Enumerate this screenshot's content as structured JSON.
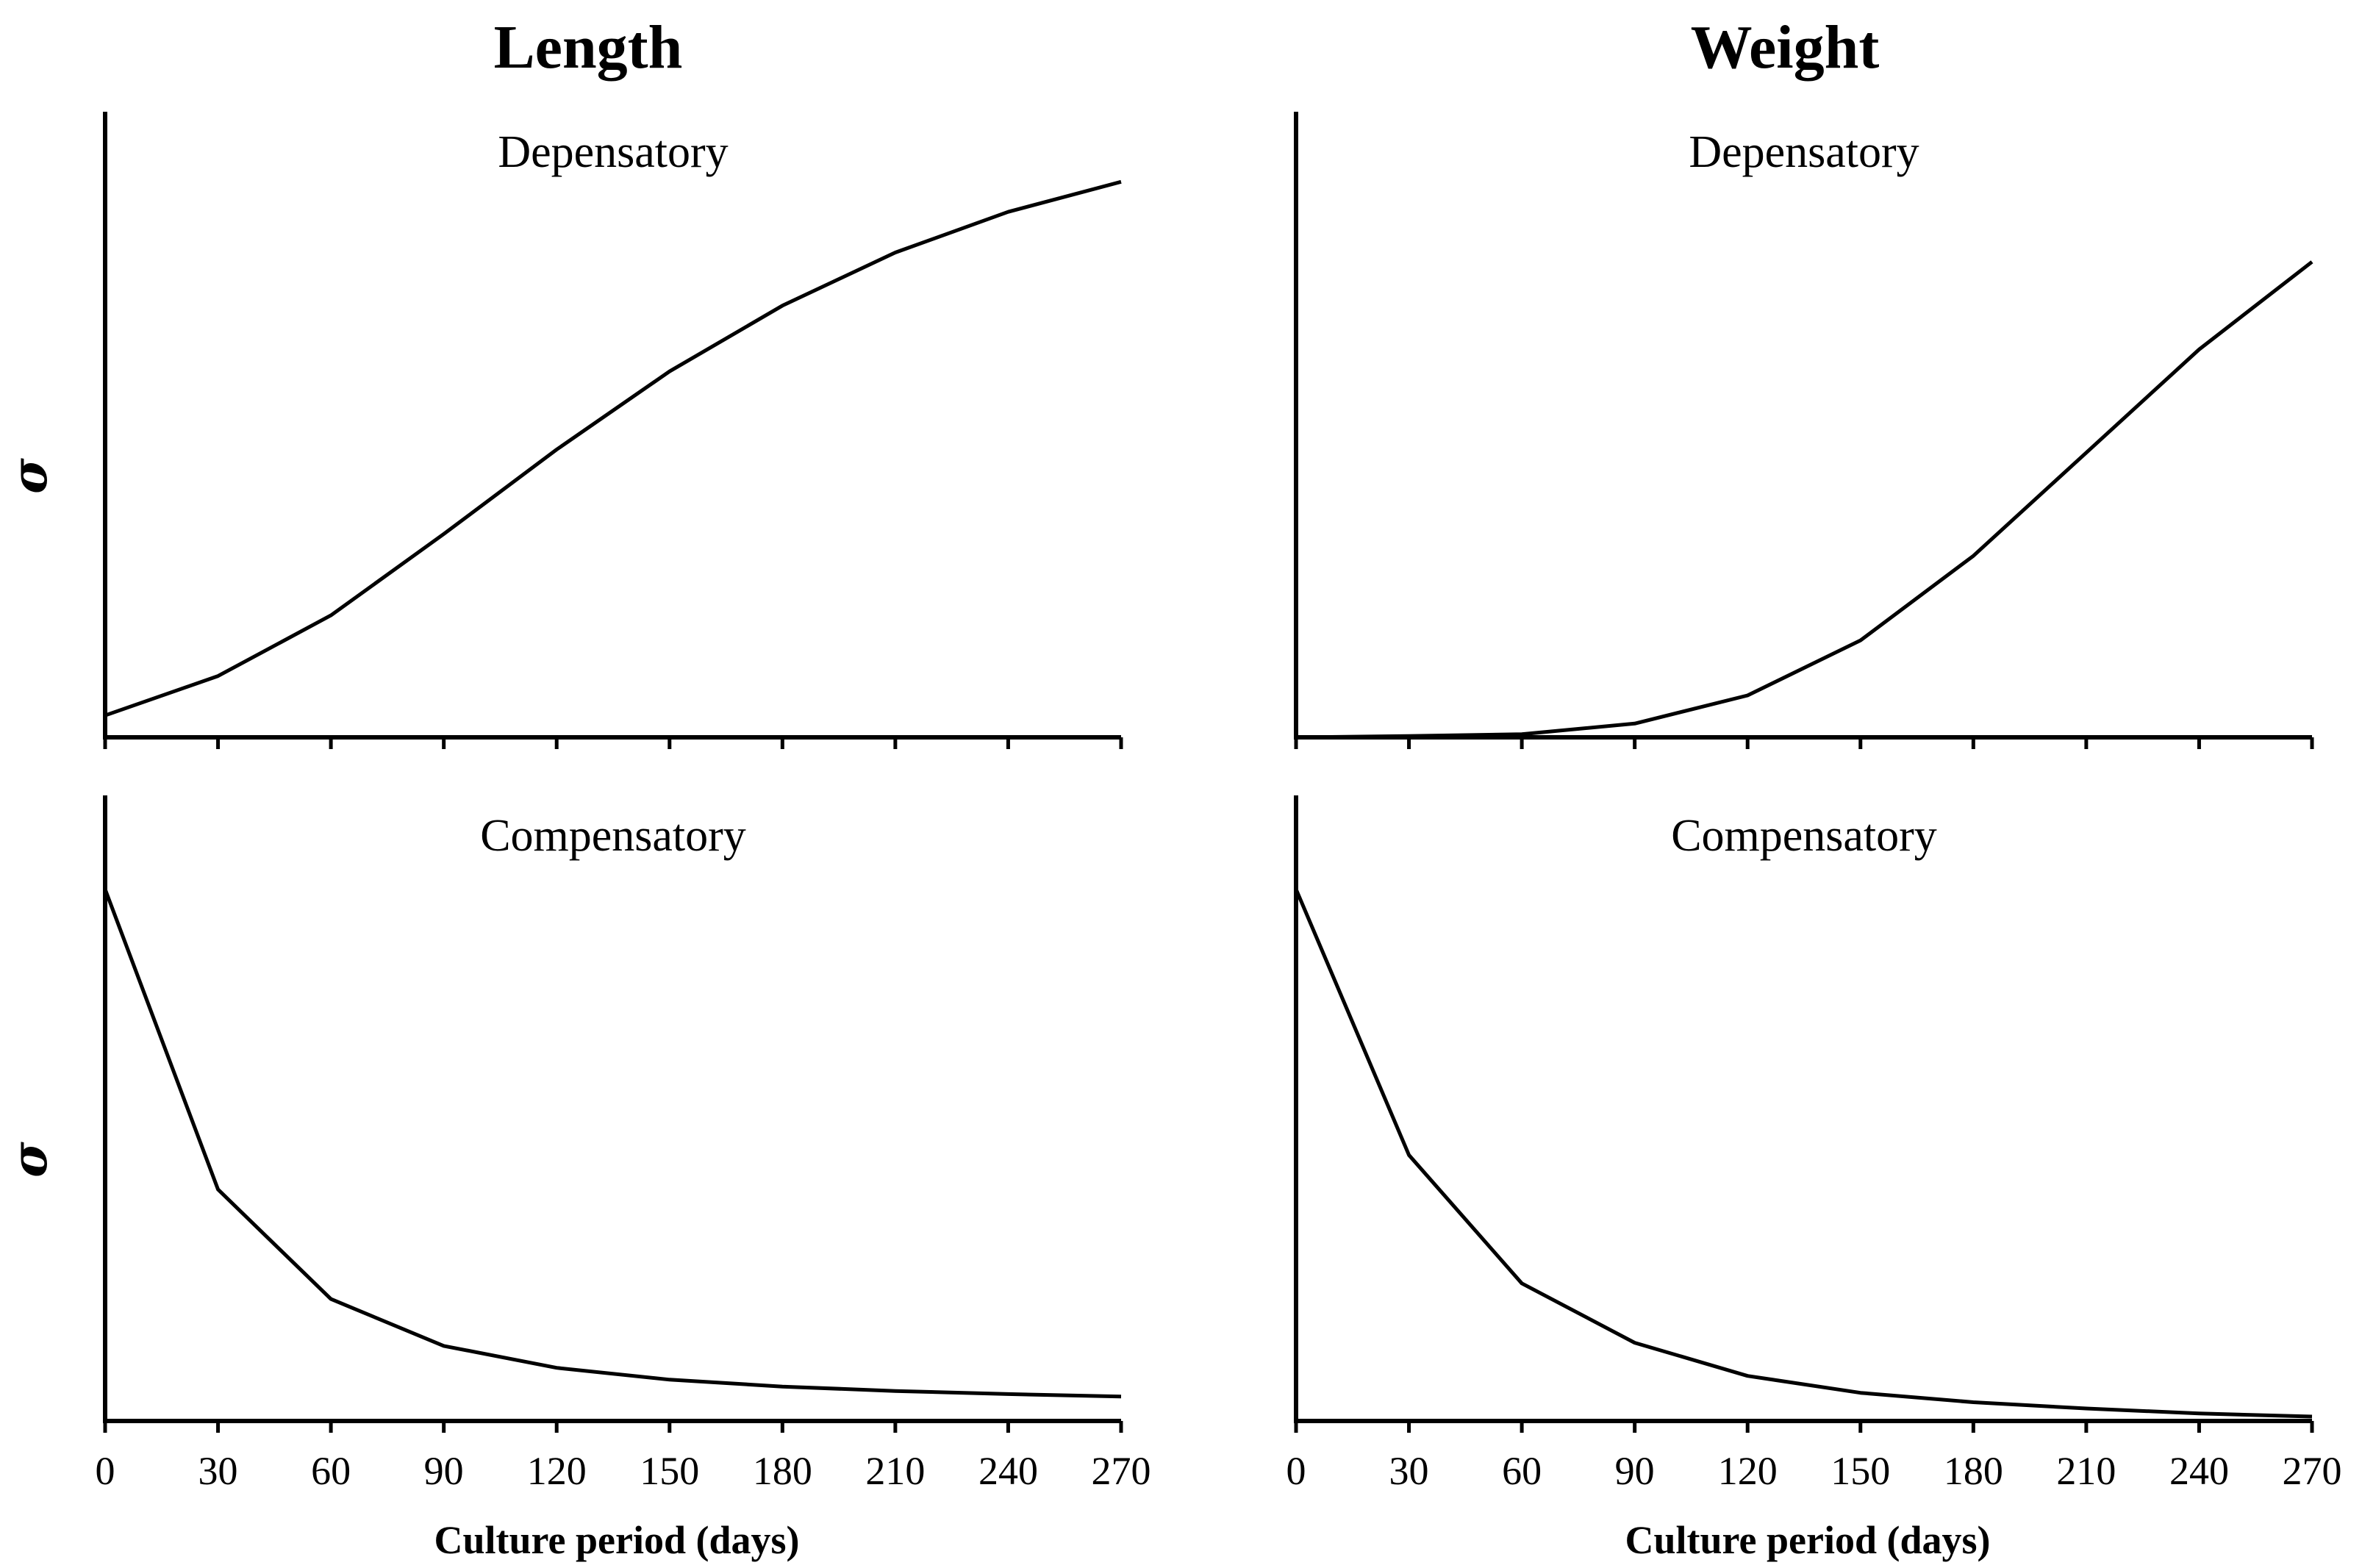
{
  "figure": {
    "column_titles": [
      "Length",
      "Weight"
    ],
    "row_labels": [
      "Depensatory",
      "Compensatory"
    ],
    "y_axis_symbol": "σ",
    "x_axis_title": "Culture period (days)"
  },
  "chart_data": [
    {
      "type": "line",
      "column": "Length",
      "panel_label": "Depensatory",
      "xlabel": "",
      "ylabel": "σ",
      "x": [
        0,
        30,
        60,
        90,
        120,
        150,
        180,
        210,
        240,
        270
      ],
      "y": [
        0.035,
        0.098,
        0.195,
        0.325,
        0.46,
        0.585,
        0.69,
        0.775,
        0.84,
        0.888
      ],
      "xlim": [
        0,
        270
      ],
      "ylim": [
        0,
        1
      ],
      "x_tick_labels": [],
      "show_y_symbol": true
    },
    {
      "type": "line",
      "column": "Weight",
      "panel_label": "Depensatory",
      "xlabel": "",
      "ylabel": "",
      "x": [
        0,
        30,
        60,
        90,
        120,
        150,
        180,
        210,
        240,
        270
      ],
      "y": [
        0.0,
        0.002,
        0.005,
        0.022,
        0.067,
        0.155,
        0.29,
        0.455,
        0.62,
        0.76
      ],
      "xlim": [
        0,
        270
      ],
      "ylim": [
        0,
        1
      ],
      "x_tick_labels": [],
      "show_y_symbol": false
    },
    {
      "type": "line",
      "column": "Length",
      "panel_label": "Compensatory",
      "xlabel": "Culture period (days)",
      "ylabel": "σ",
      "x": [
        0,
        30,
        60,
        90,
        120,
        150,
        180,
        210,
        240,
        270
      ],
      "y": [
        0.85,
        0.37,
        0.195,
        0.12,
        0.085,
        0.066,
        0.055,
        0.048,
        0.043,
        0.039
      ],
      "xlim": [
        0,
        270
      ],
      "ylim": [
        0,
        1
      ],
      "x_tick_labels": [
        "0",
        "30",
        "60",
        "90",
        "120",
        "150",
        "180",
        "210",
        "240",
        "270"
      ],
      "show_y_symbol": true
    },
    {
      "type": "line",
      "column": "Weight",
      "panel_label": "Compensatory",
      "xlabel": "Culture period (days)",
      "ylabel": "",
      "x": [
        0,
        30,
        60,
        90,
        120,
        150,
        180,
        210,
        240,
        270
      ],
      "y": [
        0.85,
        0.425,
        0.22,
        0.125,
        0.072,
        0.045,
        0.03,
        0.02,
        0.012,
        0.007
      ],
      "xlim": [
        0,
        270
      ],
      "ylim": [
        0,
        1
      ],
      "x_tick_labels": [
        "0",
        "30",
        "60",
        "90",
        "120",
        "150",
        "180",
        "210",
        "240",
        "270"
      ],
      "show_y_symbol": false
    }
  ]
}
